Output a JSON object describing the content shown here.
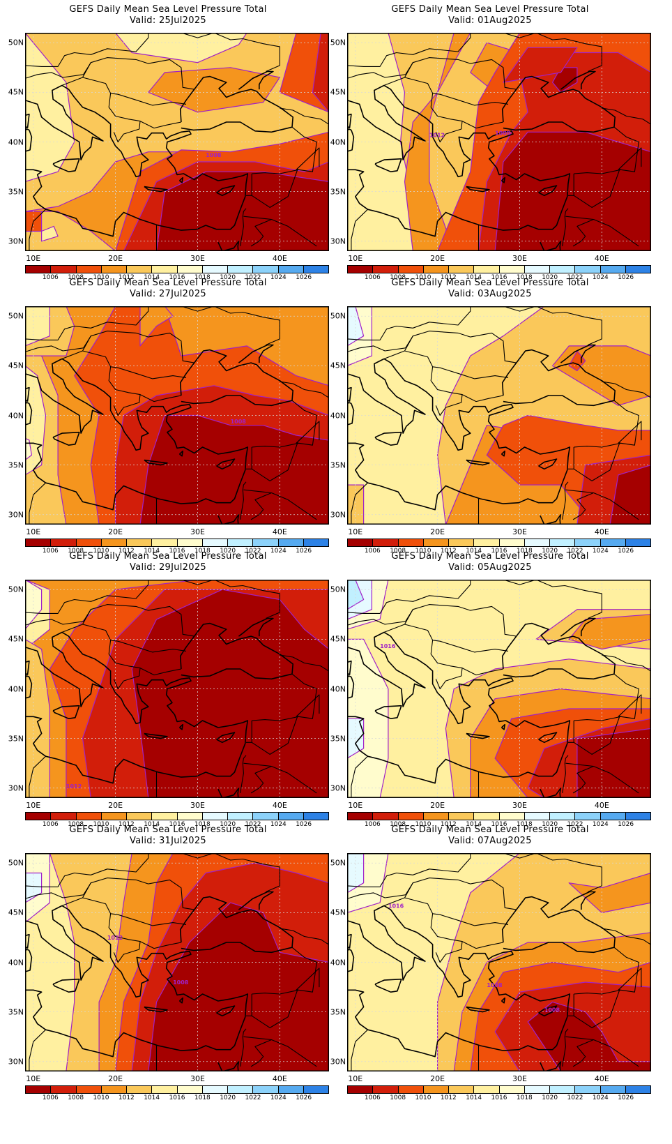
{
  "title": "GEFS Daily Mean Sea Level Pressure Total",
  "x_ticks": [
    "10E",
    "20E",
    "30E",
    "40E"
  ],
  "y_ticks": [
    "50N",
    "45N",
    "40N",
    "35N",
    "30N"
  ],
  "colorbar": {
    "labels": [
      "1006",
      "1008",
      "1010",
      "1012",
      "1014",
      "1016",
      "1018",
      "1020",
      "1022",
      "1024",
      "1026"
    ],
    "colors": [
      "#a50000",
      "#d21e0a",
      "#f0500a",
      "#f5951e",
      "#fac85a",
      "#fff0a0",
      "#fffccd",
      "#e6faff",
      "#c1f0ff",
      "#8cd2fa",
      "#56aaf0",
      "#2d82e6"
    ]
  },
  "colors": {
    "coast": "#000000",
    "isobar": "#a020c8",
    "grid": "#d8d8d8"
  },
  "panels": [
    {
      "valid": "Valid: 25Jul2025",
      "isobar_labels": [
        "1008"
      ]
    },
    {
      "valid": "Valid: 01Aug2025",
      "isobar_labels": [
        "1012",
        "1008"
      ]
    },
    {
      "valid": "Valid: 27Jul2025",
      "isobar_labels": [
        "1008"
      ]
    },
    {
      "valid": "Valid: 03Aug2025",
      "isobar_labels": []
    },
    {
      "valid": "Valid: 29Jul2025",
      "isobar_labels": [
        "1012"
      ]
    },
    {
      "valid": "Valid: 05Aug2025",
      "isobar_labels": [
        "1016"
      ]
    },
    {
      "valid": "Valid: 31Jul2025",
      "isobar_labels": [
        "1012",
        "1008"
      ]
    },
    {
      "valid": "Valid: 07Aug2025",
      "isobar_labels": [
        "1016",
        "1008",
        "1008"
      ]
    }
  ]
}
